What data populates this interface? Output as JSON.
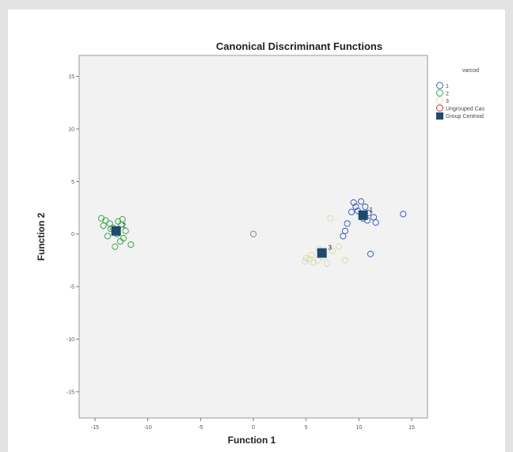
{
  "chart_data": {
    "type": "scatter",
    "title": "Canonical Discriminant Functions",
    "xlabel": "Function 1",
    "ylabel": "Function 2",
    "xlim": [
      -16.5,
      16.5
    ],
    "ylim": [
      -17.5,
      17
    ],
    "xticks": [
      -15,
      -10,
      -5,
      0,
      5,
      10,
      15
    ],
    "yticks": [
      -15,
      -10,
      -5,
      0,
      5,
      10,
      15
    ],
    "grid": false,
    "legend": {
      "title": "varcod",
      "placement": "right",
      "entries": [
        {
          "label": "1",
          "color": "#3b5fc0",
          "marker": "circle-open"
        },
        {
          "label": "2",
          "color": "#3aa64a",
          "marker": "circle-open"
        },
        {
          "label": "3",
          "color": "#d8dcb0",
          "marker": "circle-open"
        },
        {
          "label": "Ungrouped Cas",
          "color": "#c0392b",
          "marker": "circle-open"
        },
        {
          "label": "Group Centroid",
          "color": "#1e4a6e",
          "marker": "square-filled"
        }
      ]
    },
    "series": [
      {
        "name": "1",
        "color": "#3b5fc0",
        "points": [
          [
            9.5,
            3.0
          ],
          [
            10.2,
            3.1
          ],
          [
            10.6,
            2.6
          ],
          [
            9.9,
            2.2
          ],
          [
            10.9,
            2.0
          ],
          [
            11.4,
            1.6
          ],
          [
            11.6,
            1.1
          ],
          [
            9.3,
            2.1
          ],
          [
            10.4,
            1.5
          ],
          [
            8.9,
            1.0
          ],
          [
            8.7,
            0.3
          ],
          [
            8.5,
            -0.2
          ],
          [
            11.1,
            -1.9
          ],
          [
            14.2,
            1.9
          ],
          [
            9.7,
            2.6
          ],
          [
            10.8,
            1.3
          ]
        ]
      },
      {
        "name": "2",
        "color": "#3aa64a",
        "points": [
          [
            -14.4,
            1.5
          ],
          [
            -14.0,
            1.3
          ],
          [
            -13.6,
            1.0
          ],
          [
            -14.2,
            0.8
          ],
          [
            -13.3,
            0.6
          ],
          [
            -12.8,
            1.2
          ],
          [
            -12.5,
            0.9
          ],
          [
            -12.9,
            0.0
          ],
          [
            -12.3,
            -0.4
          ],
          [
            -12.6,
            -0.7
          ],
          [
            -11.6,
            -1.0
          ],
          [
            -13.1,
            -1.2
          ],
          [
            -13.5,
            0.5
          ],
          [
            -12.1,
            0.3
          ],
          [
            -13.8,
            -0.2
          ],
          [
            -12.4,
            1.4
          ]
        ]
      },
      {
        "name": "3",
        "color": "#d8dcb0",
        "points": [
          [
            4.9,
            -2.6
          ],
          [
            5.3,
            -2.4
          ],
          [
            5.7,
            -2.7
          ],
          [
            6.1,
            -2.5
          ],
          [
            6.6,
            -2.2
          ],
          [
            7.0,
            -2.8
          ],
          [
            5.5,
            -2.0
          ],
          [
            7.5,
            -1.6
          ],
          [
            8.1,
            -1.2
          ],
          [
            7.3,
            1.5
          ],
          [
            8.7,
            -2.5
          ],
          [
            6.2,
            -1.4
          ],
          [
            5.0,
            -2.3
          ]
        ]
      },
      {
        "name": "Ungrouped Cas",
        "color": "#888888",
        "points": [
          [
            0.0,
            0.0
          ]
        ]
      }
    ],
    "centroids": [
      {
        "label": "1",
        "x": 10.4,
        "y": 1.8
      },
      {
        "label": "2",
        "x": -13.0,
        "y": 0.3
      },
      {
        "label": "3",
        "x": 6.5,
        "y": -1.8
      }
    ]
  }
}
